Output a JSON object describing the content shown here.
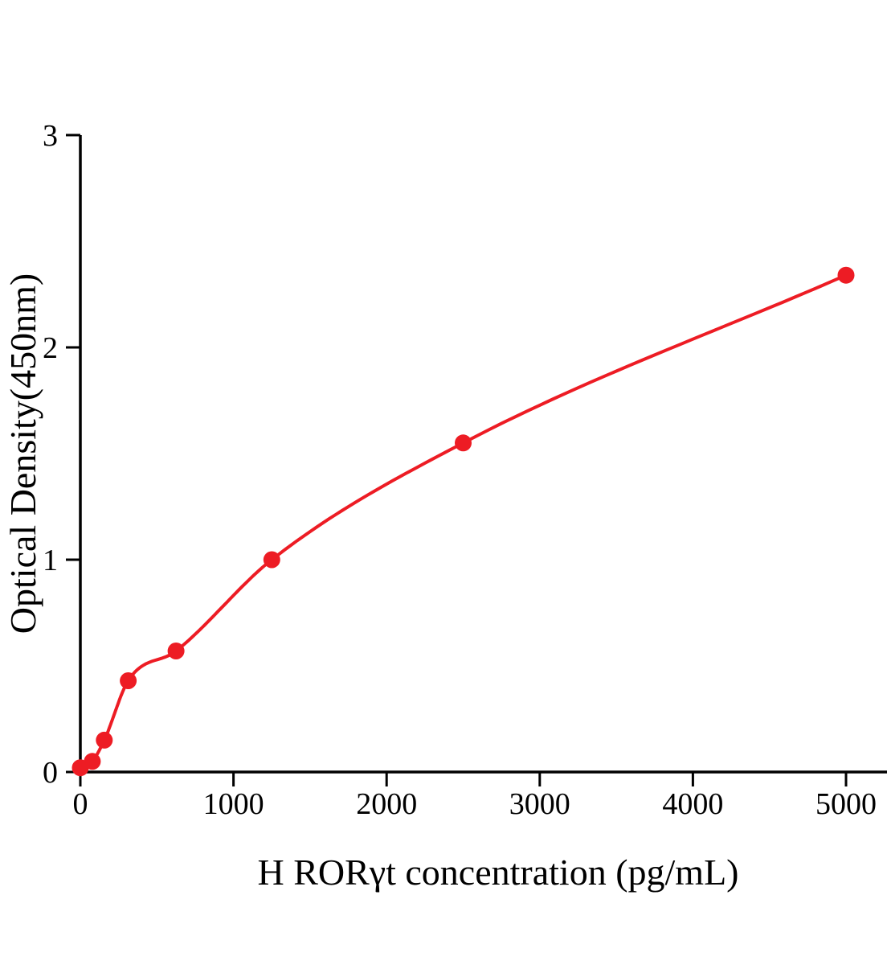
{
  "chart_data": {
    "type": "scatter",
    "title": "",
    "xlabel": "H RORγt concentration (pg/mL)",
    "ylabel": "Optical Density(450nm)",
    "x": [
      0,
      78.1,
      156.3,
      312.5,
      625,
      1250,
      2500,
      5000
    ],
    "y": [
      0.02,
      0.05,
      0.15,
      0.43,
      0.57,
      1.0,
      1.55,
      2.34
    ],
    "xticks": [
      0,
      1000,
      2000,
      3000,
      4000,
      5000
    ],
    "yticks": [
      0,
      1,
      2,
      3
    ],
    "xlim": [
      0,
      5000
    ],
    "ylim": [
      0,
      3
    ],
    "curve": "smooth fitted curve through points",
    "marker": "filled circle",
    "grid": "off",
    "legend": "none",
    "point_color": "#ed1c24",
    "line_color": "#ed1c24",
    "axis_color": "#000000"
  }
}
